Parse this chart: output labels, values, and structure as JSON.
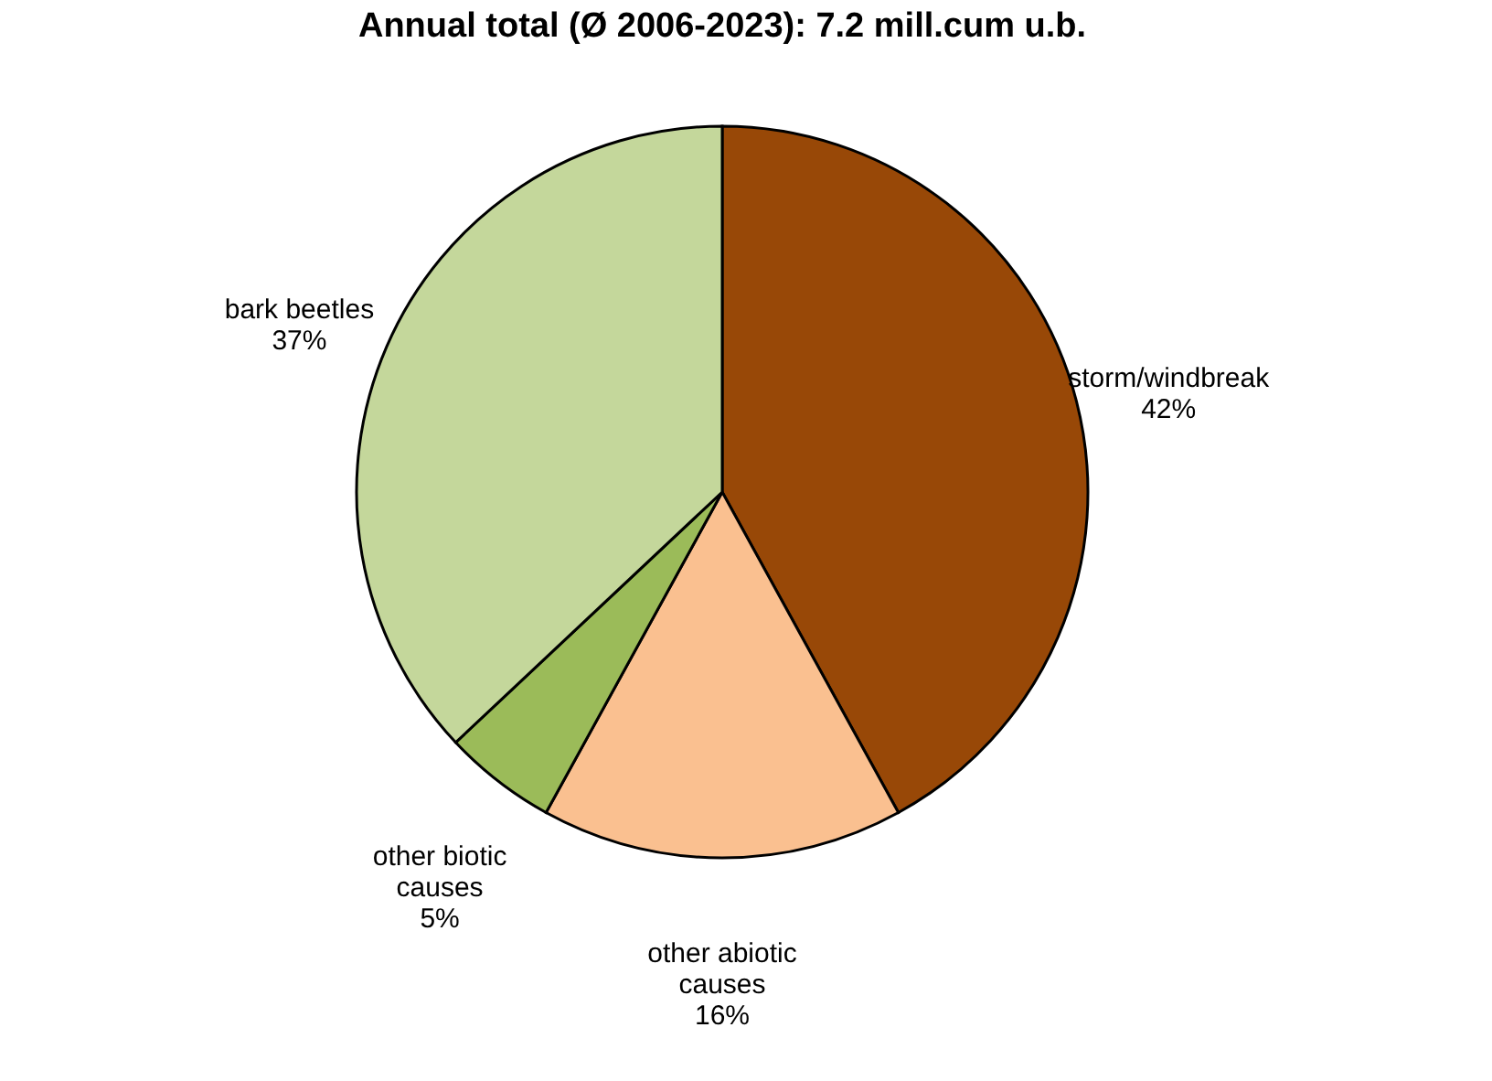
{
  "chart_data": {
    "type": "pie",
    "title": "Annual total (Ø 2006-2023): 7.2 mill.cum u.b.",
    "categories": [
      "storm/windbreak",
      "other abiotic causes",
      "other biotic causes",
      "bark beetles"
    ],
    "values": [
      42,
      16,
      5,
      37
    ],
    "value_labels": [
      "42%",
      "16%",
      "5%",
      "37%"
    ],
    "colors": [
      "#984807",
      "#fac090",
      "#9bbb59",
      "#c4d79b"
    ],
    "legend": false
  }
}
